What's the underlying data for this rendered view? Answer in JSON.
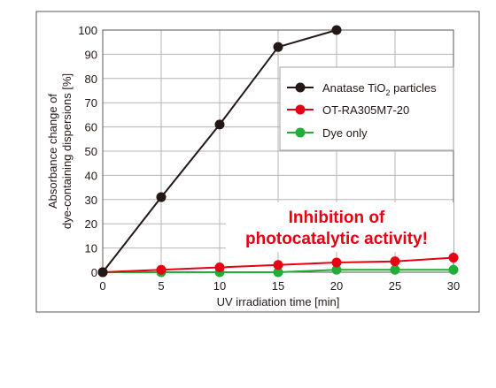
{
  "chart_data": {
    "type": "line",
    "xlabel": "UV irradiation time [min]",
    "ylabel_line1": "Absorbance change of",
    "ylabel_line2": "dye-containing dispersions [%]",
    "xlim": [
      0,
      30
    ],
    "ylim": [
      0,
      100
    ],
    "xticks": [
      0,
      5,
      10,
      15,
      20,
      25,
      30
    ],
    "yticks": [
      0,
      10,
      20,
      30,
      40,
      50,
      60,
      70,
      80,
      90,
      100
    ],
    "grid": true,
    "legend_position": "top-right",
    "series": [
      {
        "name": "Anatase TiO",
        "name_subscript": "2",
        "name_suffix": " particles",
        "color": "#231815",
        "x": [
          0,
          5,
          10,
          15,
          20
        ],
        "y": [
          0,
          31,
          61,
          93,
          100
        ]
      },
      {
        "name": "OT-RA305M7-20",
        "color": "#e60012",
        "x": [
          0,
          5,
          10,
          15,
          20,
          25,
          30
        ],
        "y": [
          0,
          1,
          2,
          3,
          4,
          4.5,
          6
        ]
      },
      {
        "name": "Dye only",
        "color": "#22ac38",
        "x": [
          0,
          5,
          10,
          15,
          20,
          25,
          30
        ],
        "y": [
          0,
          0,
          0,
          0,
          1,
          1,
          1
        ]
      }
    ],
    "annotation": {
      "line1": "Inhibition of",
      "line2": "photocatalytic activity!",
      "color": "#e60012"
    }
  }
}
